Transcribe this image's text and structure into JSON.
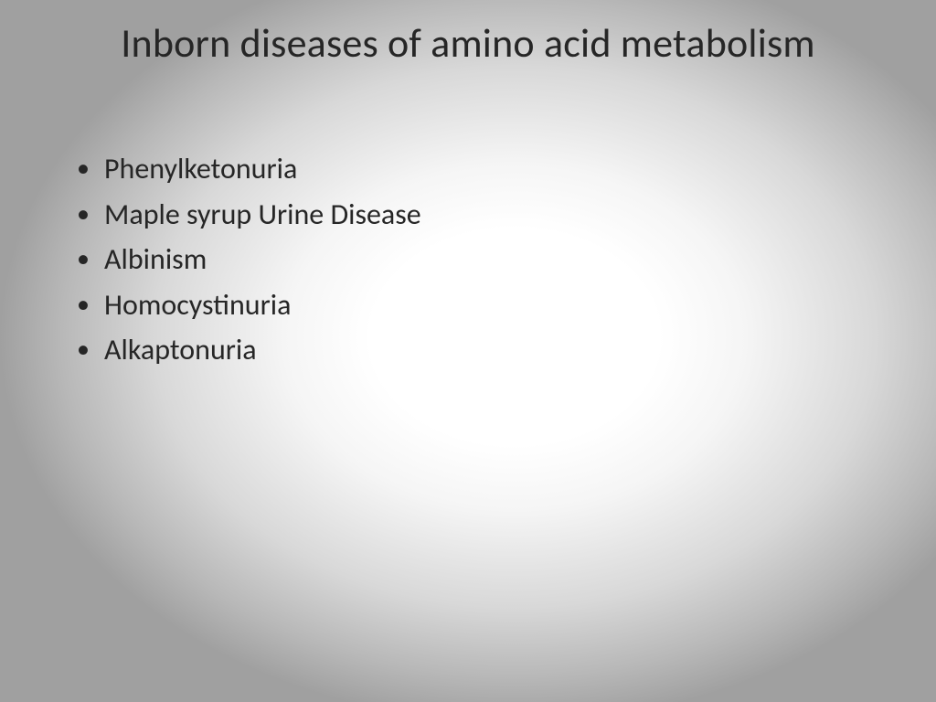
{
  "slide": {
    "title": "Inborn diseases of amino acid metabolism",
    "bullets": [
      "Phenylketonuria",
      "Maple syrup Urine Disease",
      "Albinism",
      "Homocystinuria",
      "Alkaptonuria"
    ],
    "style": {
      "background_gradient_center": "#ffffff",
      "background_gradient_edge": "#a0a0a0",
      "text_color": "#262626",
      "title_fontsize": 44,
      "body_fontsize": 32,
      "font_family": "Calibri"
    }
  }
}
